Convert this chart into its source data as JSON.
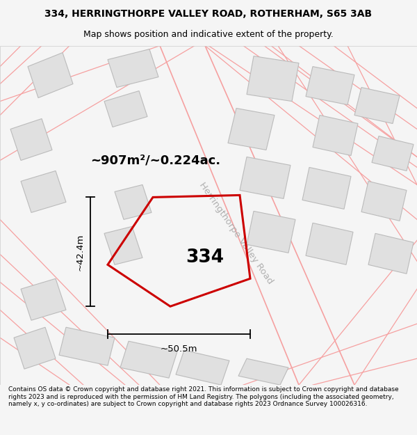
{
  "title_line1": "334, HERRINGTHORPE VALLEY ROAD, ROTHERHAM, S65 3AB",
  "title_line2": "Map shows position and indicative extent of the property.",
  "area_label": "~907m²/~0.224ac.",
  "property_number": "334",
  "dim_width": "~50.5m",
  "dim_height": "~42.4m",
  "road_label": "Herringthorpe Valley Road",
  "footer_text": "Contains OS data © Crown copyright and database right 2021. This information is subject to Crown copyright and database rights 2023 and is reproduced with the permission of HM Land Registry. The polygons (including the associated geometry, namely x, y co-ordinates) are subject to Crown copyright and database rights 2023 Ordnance Survey 100026316.",
  "bg_color": "#f5f5f5",
  "map_bg": "#ffffff",
  "property_color": "#cc0000",
  "building_fill": "#e0e0e0",
  "building_edge": "#bbbbbb",
  "boundary_color": "#f5a0a0",
  "road_color": "#cccccc",
  "title_fontsize": 10,
  "subtitle_fontsize": 9,
  "footer_fontsize": 6.5
}
